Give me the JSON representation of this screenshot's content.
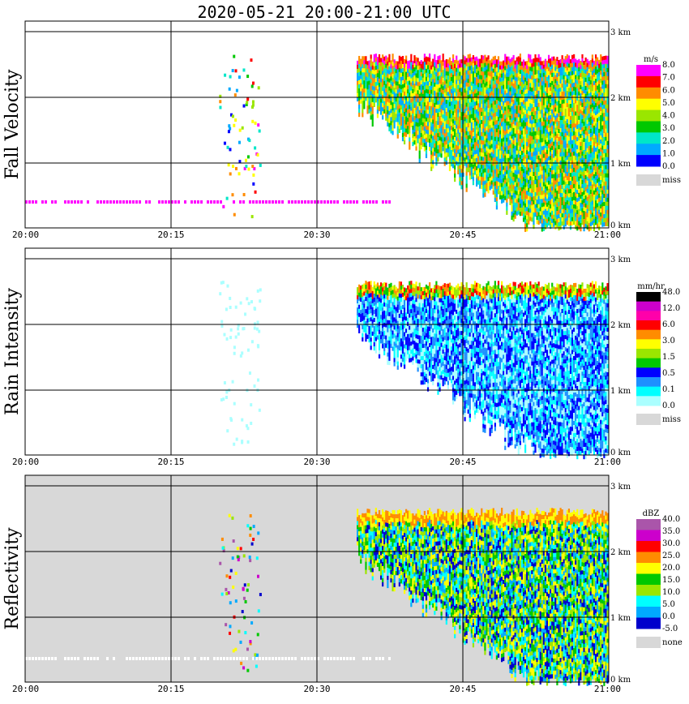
{
  "title": "2020-05-21   20:00-21:00 UTC",
  "x_ticks": [
    "20:00",
    "20:15",
    "20:30",
    "20:45",
    "21:00"
  ],
  "height_ticks": [
    "0 km",
    "1 km",
    "2 km",
    "3 km"
  ],
  "panels": [
    {
      "ylabel": "Fall Velocity",
      "unit": "m/s",
      "legend_labels": [
        "8.0",
        "7.0",
        "6.0",
        "5.0",
        "4.0",
        "3.0",
        "2.0",
        "1.0",
        "0.0"
      ],
      "legend_colors": [
        "#ff00ff",
        "#ff0000",
        "#ff8c00",
        "#ffff00",
        "#9ae600",
        "#00c800",
        "#00e6c8",
        "#00aaff",
        "#0000ff"
      ],
      "miss_label": "miss",
      "miss_color": "#d8d8d8",
      "background": "#ffffff"
    },
    {
      "ylabel": "Rain Intensity",
      "unit": "mm/hr",
      "legend_labels": [
        "48.0",
        "12.0",
        "6.0",
        "3.0",
        "1.5",
        "0.5",
        "0.1",
        "0.0"
      ],
      "legend_colors": [
        "#000000",
        "#cc00cc",
        "#ff00aa",
        "#ff0000",
        "#ff8c00",
        "#ffff00",
        "#9ae600",
        "#00c800",
        "#0000ff",
        "#1e90ff",
        "#00ffff",
        "#aaffff"
      ],
      "miss_label": "miss",
      "miss_color": "#d8d8d8",
      "background": "#ffffff"
    },
    {
      "ylabel": "Reflectivity",
      "unit": "dBZ",
      "legend_labels": [
        "40.0",
        "35.0",
        "30.0",
        "25.0",
        "20.0",
        "15.0",
        "10.0",
        "5.0",
        "0.0",
        "-5.0"
      ],
      "legend_colors": [
        "#aa55aa",
        "#cc00cc",
        "#ff0000",
        "#ff8c00",
        "#ffff00",
        "#00c800",
        "#9ae600",
        "#00ffff",
        "#00aaff",
        "#0000cc"
      ],
      "miss_label": "none",
      "miss_color": "#d8d8d8",
      "background": "#d8d8d8"
    }
  ],
  "chart_data": {
    "type": "heatmap",
    "title": "2020-05-21   20:00-21:00 UTC",
    "x_range": [
      "20:00",
      "21:00"
    ],
    "y_range_km": [
      0,
      3.2
    ],
    "panels": [
      "Fall Velocity",
      "Rain Intensity",
      "Reflectivity"
    ]
  }
}
